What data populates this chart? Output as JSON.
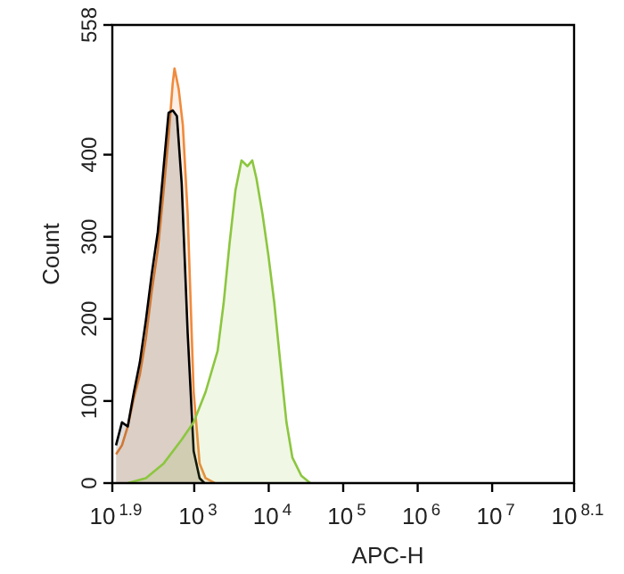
{
  "chart_data": {
    "type": "area",
    "xlabel": "APC-H",
    "ylabel": "Count",
    "log": "x",
    "grid": false,
    "legend": false,
    "marker": "none",
    "line_style": "solid",
    "xlim": [
      79.43,
      125900000
    ],
    "xticks": [
      {
        "value": 79.43,
        "label": "10$^{1.9}$"
      },
      {
        "value": 1000,
        "label": "10$^{3}$"
      },
      {
        "value": 10000,
        "label": "10$^{4}$"
      },
      {
        "value": 100000,
        "label": "10$^{5}$"
      },
      {
        "value": 1000000,
        "label": "10$^{6}$"
      },
      {
        "value": 10000000,
        "label": "10$^{7}$"
      },
      {
        "value": 125900000,
        "label": "10$^{8.1}$"
      }
    ],
    "ylim": [
      0,
      558
    ],
    "yticks": [
      0,
      100,
      200,
      300,
      400,
      558
    ],
    "series": [
      {
        "color": "#8cc63f",
        "x": [
          128,
          224,
          389,
          678,
          982,
          1420,
          2060,
          2480,
          2980,
          3580,
          4310,
          5190,
          6010,
          6840,
          8240,
          9910,
          11900,
          14300,
          17300,
          20800,
          27400,
          36100
        ],
        "values": [
          0,
          6,
          24,
          53,
          74,
          111,
          161,
          219,
          292,
          357,
          393,
          386,
          393,
          371,
          328,
          277,
          219,
          147,
          74,
          31,
          9,
          0
        ]
      },
      {
        "color": "#000000",
        "x": [
          89,
          107,
          128,
          155,
          186,
          224,
          269,
          324,
          389,
          452,
          514,
          585,
          678,
          816,
          982,
          1180,
          1370
        ],
        "values": [
          46,
          74,
          69,
          111,
          147,
          198,
          255,
          306,
          386,
          451,
          454,
          447,
          365,
          183,
          39,
          6,
          0
        ]
      },
      {
        "color": "#f08a3c",
        "x": [
          89,
          107,
          128,
          155,
          186,
          224,
          269,
          324,
          389,
          452,
          514,
          543,
          618,
          703,
          816,
          982,
          1180,
          1420,
          1880
        ],
        "values": [
          35,
          46,
          69,
          104,
          132,
          176,
          234,
          284,
          357,
          422,
          487,
          505,
          480,
          436,
          328,
          111,
          24,
          6,
          0
        ]
      }
    ]
  }
}
